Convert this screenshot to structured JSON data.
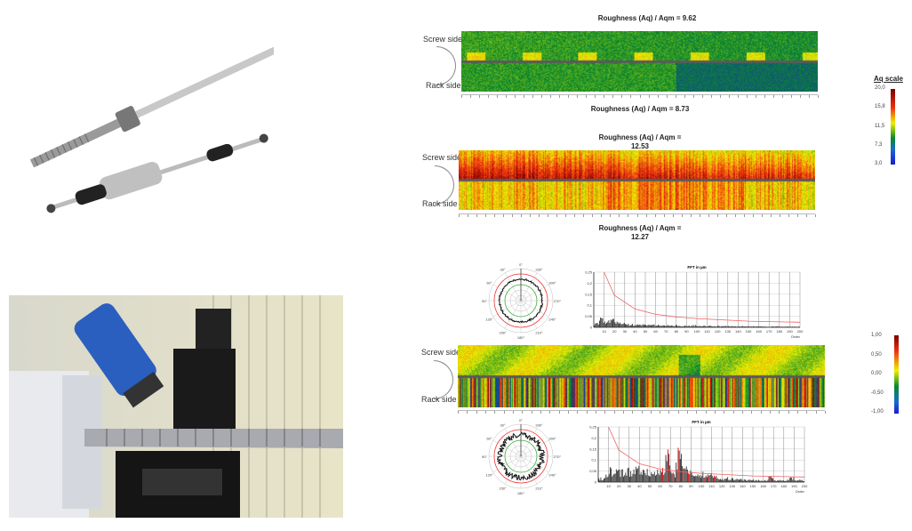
{
  "photos": {
    "steering_rack": {
      "alt": "steering rack and ball screw"
    },
    "measurement_rig": {
      "alt": "surface scanning rig on threaded rod"
    }
  },
  "heatmaps": [
    {
      "title": "Roughness (Aq) / Aqm = 9.62",
      "bottom_title": "Roughness (Aq) / Aqm = 8.73",
      "screw_label": "Screw side",
      "rack_label": "Rack side"
    },
    {
      "title_line1": "Roughness (Aq) / Aqm =",
      "title_line2": "12.53",
      "bottom_line1": "Roughness (Aq) / Aqm =",
      "bottom_line2": "12.27",
      "screw_label": "Screw side",
      "rack_label": "Rack side"
    },
    {
      "screw_label": "Screw side",
      "rack_label": "Rack side"
    }
  ],
  "aq_scale": {
    "title": "Aq scale",
    "ticks": [
      "20,0",
      "15,8",
      "11,5",
      "7,3",
      "3,0"
    ]
  },
  "dev_scale": {
    "ticks": [
      "1,00",
      "0,50",
      "0,00",
      "-0,50",
      "-1,00"
    ]
  },
  "colors": {
    "low": "#1a1ad0",
    "mid_low": "#0a8a2a",
    "mid": "#f0f000",
    "high": "#f03010",
    "max": "#7a0000",
    "threshold": "#f06060"
  },
  "chart_data": [
    {
      "type": "bar",
      "title": "FFT in µm",
      "xlabel": "Order",
      "xlim": [
        0,
        200
      ],
      "ylim": [
        0,
        0.25
      ],
      "yticks": [
        "0",
        "0,05",
        "0,1",
        "0,15",
        "0,2",
        "0,25"
      ],
      "xticks": [
        "10",
        "20",
        "30",
        "40",
        "50",
        "60",
        "70",
        "80",
        "90",
        "100",
        "110",
        "120",
        "130",
        "140",
        "150",
        "160",
        "170",
        "180",
        "190",
        "200"
      ],
      "x": [
        5,
        10,
        15,
        20,
        25,
        30,
        35,
        40,
        45,
        50,
        55,
        60,
        65,
        70,
        75,
        80,
        85,
        90,
        95,
        100,
        105,
        110,
        115,
        120,
        125,
        130,
        135,
        140,
        145,
        150,
        155,
        160,
        165,
        170,
        175,
        180,
        185,
        190,
        195,
        200
      ],
      "values": [
        0.02,
        0.045,
        0.03,
        0.038,
        0.022,
        0.02,
        0.016,
        0.015,
        0.012,
        0.015,
        0.01,
        0.011,
        0.01,
        0.008,
        0.01,
        0.009,
        0.008,
        0.008,
        0.006,
        0.01,
        0.006,
        0.007,
        0.006,
        0.005,
        0.006,
        0.005,
        0.005,
        0.005,
        0.005,
        0.004,
        0.005,
        0.004,
        0.004,
        0.004,
        0.004,
        0.004,
        0.003,
        0.004,
        0.003,
        0.003
      ],
      "threshold": {
        "x": [
          10,
          20,
          40,
          60,
          80,
          100,
          150,
          200
        ],
        "y": [
          0.25,
          0.145,
          0.083,
          0.059,
          0.047,
          0.04,
          0.028,
          0.023
        ]
      }
    },
    {
      "type": "bar",
      "title": "FFT in µm",
      "xlabel": "Order",
      "xlim": [
        0,
        200
      ],
      "ylim": [
        0,
        0.25
      ],
      "yticks": [
        "0",
        "0,05",
        "0,1",
        "0,15",
        "0,2",
        "0,25"
      ],
      "xticks": [
        "10",
        "20",
        "30",
        "40",
        "50",
        "60",
        "70",
        "80",
        "90",
        "100",
        "110",
        "120",
        "130",
        "140",
        "150",
        "160",
        "170",
        "180",
        "190",
        "200"
      ],
      "x": [
        5,
        10,
        15,
        20,
        25,
        30,
        35,
        40,
        45,
        50,
        55,
        60,
        65,
        70,
        75,
        80,
        85,
        90,
        95,
        100,
        105,
        110,
        115,
        120,
        125,
        130,
        135,
        140,
        145,
        150,
        155,
        160,
        165,
        170,
        175,
        180,
        185,
        190,
        195,
        200
      ],
      "values": [
        0.02,
        0.03,
        0.06,
        0.08,
        0.05,
        0.06,
        0.06,
        0.07,
        0.05,
        0.06,
        0.05,
        0.05,
        0.06,
        0.13,
        0.05,
        0.14,
        0.13,
        0.06,
        0.04,
        0.03,
        0.04,
        0.04,
        0.04,
        0.02,
        0.015,
        0.02,
        0.015,
        0.015,
        0.012,
        0.012,
        0.01,
        0.01,
        0.01,
        0.025,
        0.01,
        0.01,
        0.01,
        0.02,
        0.01,
        0.01
      ],
      "exceed": [
        false,
        false,
        false,
        false,
        false,
        false,
        false,
        false,
        false,
        false,
        false,
        false,
        true,
        true,
        true,
        true,
        true,
        true,
        false,
        false,
        true,
        true,
        true,
        false,
        false,
        false,
        false,
        false,
        false,
        false,
        false,
        false,
        false,
        true,
        false,
        false,
        false,
        true,
        false,
        false
      ],
      "threshold": {
        "x": [
          10,
          20,
          40,
          60,
          80,
          100,
          150,
          200
        ],
        "y": [
          0.25,
          0.145,
          0.083,
          0.059,
          0.047,
          0.04,
          0.028,
          0.023
        ]
      }
    },
    {
      "type": "polar",
      "angle_labels": [
        "0°",
        "30°",
        "60°",
        "90°",
        "120°",
        "150°",
        "180°",
        "210°",
        "240°",
        "270°",
        "300°",
        "330°"
      ]
    },
    {
      "type": "polar",
      "angle_labels": [
        "0°",
        "30°",
        "60°",
        "90°",
        "120°",
        "150°",
        "180°",
        "210°",
        "240°",
        "270°",
        "300°",
        "330°"
      ]
    }
  ]
}
